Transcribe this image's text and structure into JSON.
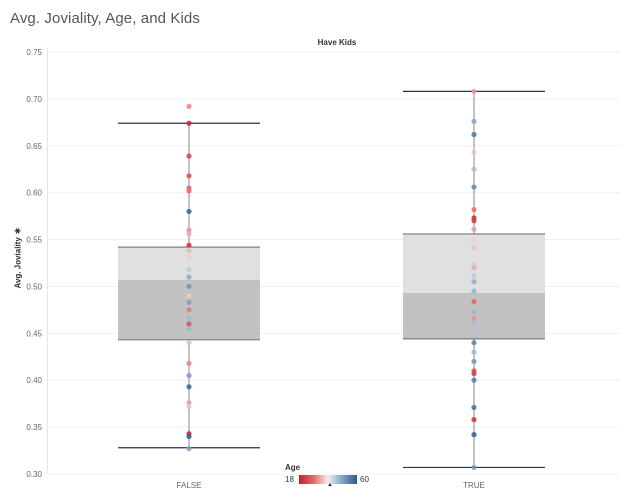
{
  "title": "Avg. Joviality, Age, and Kids",
  "facet_header": "Have Kids",
  "ylabel": "Avg. Joviality",
  "ylabel_icon": "pin-icon",
  "legend": {
    "title": "Age",
    "min": "18",
    "max": "60",
    "colors": [
      "#c0202b",
      "#e8686a",
      "#eeeeee",
      "#7fa3c6",
      "#2f5b8f"
    ]
  },
  "chart_data": {
    "type": "box-plot with jittered points",
    "title": "Avg. Joviality, Age, and Kids",
    "xlabel": "",
    "ylabel": "Avg. Joviality",
    "ylim": [
      0.3,
      0.75
    ],
    "yticks": [
      "0.30",
      "0.35",
      "0.40",
      "0.45",
      "0.50",
      "0.55",
      "0.60",
      "0.65",
      "0.70",
      "0.75"
    ],
    "grid": true,
    "categories": [
      "FALSE",
      "TRUE"
    ],
    "boxes": [
      {
        "category": "FALSE",
        "whisker_low": 0.328,
        "q1": 0.443,
        "median": 0.507,
        "q3": 0.542,
        "whisker_high": 0.674
      },
      {
        "category": "TRUE",
        "whisker_low": 0.307,
        "q1": 0.444,
        "median": 0.493,
        "q3": 0.556,
        "whisker_high": 0.708
      }
    ],
    "points": {
      "FALSE": [
        {
          "y": 0.692,
          "age": 28
        },
        {
          "y": 0.674,
          "age": 19
        },
        {
          "y": 0.639,
          "age": 22
        },
        {
          "y": 0.618,
          "age": 23
        },
        {
          "y": 0.605,
          "age": 25
        },
        {
          "y": 0.602,
          "age": 26
        },
        {
          "y": 0.58,
          "age": 59
        },
        {
          "y": 0.56,
          "age": 29
        },
        {
          "y": 0.556,
          "age": 31
        },
        {
          "y": 0.544,
          "age": 20
        },
        {
          "y": 0.538,
          "age": 32
        },
        {
          "y": 0.531,
          "age": 34
        },
        {
          "y": 0.518,
          "age": 38
        },
        {
          "y": 0.51,
          "age": 46
        },
        {
          "y": 0.5,
          "age": 50
        },
        {
          "y": 0.49,
          "age": 35
        },
        {
          "y": 0.483,
          "age": 48
        },
        {
          "y": 0.475,
          "age": 27
        },
        {
          "y": 0.466,
          "age": 44
        },
        {
          "y": 0.46,
          "age": 23
        },
        {
          "y": 0.455,
          "age": 44
        },
        {
          "y": 0.44,
          "age": 33
        },
        {
          "y": 0.418,
          "age": 28
        },
        {
          "y": 0.405,
          "age": 49
        },
        {
          "y": 0.393,
          "age": 58
        },
        {
          "y": 0.376,
          "age": 30
        },
        {
          "y": 0.372,
          "age": 36
        },
        {
          "y": 0.343,
          "age": 19
        },
        {
          "y": 0.34,
          "age": 60
        },
        {
          "y": 0.327,
          "age": 48
        }
      ],
      "TRUE": [
        {
          "y": 0.708,
          "age": 30
        },
        {
          "y": 0.676,
          "age": 47
        },
        {
          "y": 0.662,
          "age": 55
        },
        {
          "y": 0.643,
          "age": 33
        },
        {
          "y": 0.625,
          "age": 42
        },
        {
          "y": 0.606,
          "age": 52
        },
        {
          "y": 0.582,
          "age": 26
        },
        {
          "y": 0.573,
          "age": 19
        },
        {
          "y": 0.57,
          "age": 21
        },
        {
          "y": 0.561,
          "age": 30
        },
        {
          "y": 0.55,
          "age": 34
        },
        {
          "y": 0.541,
          "age": 33
        },
        {
          "y": 0.523,
          "age": 36
        },
        {
          "y": 0.52,
          "age": 31
        },
        {
          "y": 0.511,
          "age": 38
        },
        {
          "y": 0.505,
          "age": 46
        },
        {
          "y": 0.495,
          "age": 45
        },
        {
          "y": 0.484,
          "age": 25
        },
        {
          "y": 0.473,
          "age": 44
        },
        {
          "y": 0.466,
          "age": 29
        },
        {
          "y": 0.462,
          "age": 43
        },
        {
          "y": 0.449,
          "age": 40
        },
        {
          "y": 0.44,
          "age": 53
        },
        {
          "y": 0.43,
          "age": 44
        },
        {
          "y": 0.42,
          "age": 50
        },
        {
          "y": 0.41,
          "age": 23
        },
        {
          "y": 0.407,
          "age": 21
        },
        {
          "y": 0.4,
          "age": 54
        },
        {
          "y": 0.371,
          "age": 57
        },
        {
          "y": 0.358,
          "age": 20
        },
        {
          "y": 0.342,
          "age": 60
        },
        {
          "y": 0.307,
          "age": 49
        }
      ]
    },
    "color_encoding": {
      "field": "Age",
      "min": 18,
      "max": 60
    }
  }
}
